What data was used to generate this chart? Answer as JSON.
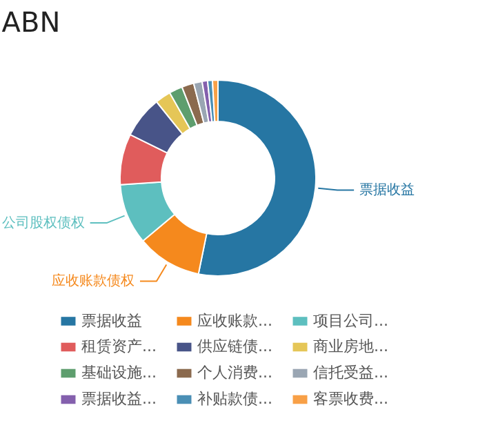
{
  "chart_data": {
    "type": "donut",
    "title": "ABN",
    "categories": [
      "票据收益",
      "应收账款...",
      "项目公司...",
      "租赁资产...",
      "供应链债...",
      "商业房地...",
      "基础设施...",
      "个人消费...",
      "信托受益...",
      "票据收益...",
      "补贴款债...",
      "客票收费..."
    ],
    "values": [
      53.2,
      10.7,
      10.0,
      8.4,
      6.9,
      2.6,
      2.2,
      2.0,
      1.4,
      0.9,
      0.8,
      0.9
    ],
    "colors": [
      "#2676a3",
      "#f5891d",
      "#5dbfbf",
      "#e05c5c",
      "#485488",
      "#e5c657",
      "#5e9e6e",
      "#8b6a4e",
      "#9aa6b3",
      "#8460ad",
      "#4a8fb5",
      "#f8a047"
    ],
    "legend": "bottom",
    "annotations": [
      {
        "text": "票据收益",
        "x": "票据收益"
      },
      {
        "text": "应收账款债权",
        "x": "应收账款..."
      },
      {
        "text": "公司股权债权",
        "x": "项目公司..."
      }
    ]
  }
}
